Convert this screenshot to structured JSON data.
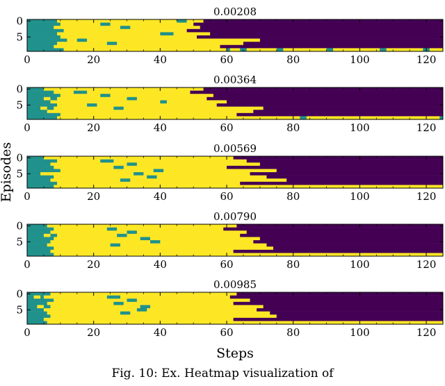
{
  "chart_data": {
    "type": "heatmap",
    "xlabel": "Steps",
    "ylabel": "Episodes",
    "xlim": [
      0,
      125
    ],
    "x_ticks": [
      0,
      20,
      40,
      60,
      80,
      100,
      120
    ],
    "y_ticks": [
      0,
      5
    ],
    "episodes": 10,
    "steps": 125,
    "colors": {
      "teal": "#21918c",
      "yellow": "#fde725",
      "purple": "#440154"
    },
    "panels": [
      {
        "title": "0.00208",
        "teal_end": [
          9,
          10,
          8,
          11,
          9,
          10,
          12,
          9,
          8,
          11
        ],
        "yellow_end": [
          53,
          50,
          52,
          48,
          55,
          51,
          70,
          65,
          58,
          125
        ],
        "teal_spots": [
          [
            1,
            22,
            25
          ],
          [
            2,
            28,
            31
          ],
          [
            4,
            40,
            44
          ],
          [
            6,
            15,
            18
          ],
          [
            7,
            24,
            27
          ],
          [
            0,
            45,
            48
          ]
        ],
        "yellow_spots": [
          [
            2,
            11,
            14
          ],
          [
            5,
            13,
            16
          ],
          [
            8,
            18,
            20
          ],
          [
            3,
            14,
            15
          ]
        ],
        "marks": [
          [
            9,
            60,
            61
          ],
          [
            9,
            64,
            66
          ],
          [
            9,
            75,
            77
          ],
          [
            9,
            90,
            92
          ],
          [
            9,
            106,
            108
          ],
          [
            9,
            119,
            121
          ]
        ]
      },
      {
        "title": "0.00364",
        "teal_end": [
          5,
          8,
          10,
          9,
          7,
          9,
          8,
          6,
          10,
          9
        ],
        "yellow_end": [
          53,
          49,
          56,
          54,
          60,
          57,
          71,
          68,
          63,
          125
        ],
        "teal_spots": [
          [
            1,
            14,
            18
          ],
          [
            2,
            22,
            25
          ],
          [
            3,
            30,
            33
          ],
          [
            5,
            18,
            21
          ],
          [
            6,
            26,
            29
          ],
          [
            4,
            40,
            42
          ]
        ],
        "yellow_spots": [
          [
            3,
            5,
            7
          ],
          [
            6,
            4,
            6
          ]
        ],
        "marks": [
          [
            9,
            82,
            84
          ],
          [
            9,
            124,
            125
          ]
        ]
      },
      {
        "title": "0.00569",
        "teal_end": [
          5,
          9,
          7,
          8,
          10,
          6,
          8,
          7,
          9,
          8
        ],
        "yellow_end": [
          62,
          66,
          70,
          60,
          75,
          67,
          72,
          78,
          64,
          125
        ],
        "teal_spots": [
          [
            1,
            22,
            26
          ],
          [
            2,
            30,
            33
          ],
          [
            3,
            26,
            29
          ],
          [
            4,
            38,
            41
          ],
          [
            5,
            32,
            35
          ],
          [
            6,
            36,
            39
          ],
          [
            7,
            28,
            31
          ]
        ],
        "yellow_spots": [
          [
            5,
            4,
            6
          ]
        ],
        "marks": []
      },
      {
        "title": "0.00790",
        "teal_end": [
          6,
          8,
          7,
          9,
          8,
          7,
          6,
          8,
          7,
          8
        ],
        "yellow_end": [
          63,
          59,
          66,
          64,
          70,
          68,
          72,
          74,
          62,
          125
        ],
        "teal_spots": [
          [
            1,
            24,
            27
          ],
          [
            2,
            30,
            33
          ],
          [
            3,
            27,
            30
          ],
          [
            4,
            34,
            37
          ],
          [
            5,
            37,
            40
          ],
          [
            6,
            25,
            28
          ]
        ],
        "yellow_spots": [
          [
            3,
            5,
            7
          ]
        ],
        "marks": []
      },
      {
        "title": "0.00985",
        "teal_end": [
          7,
          5,
          8,
          6,
          7,
          5,
          6,
          7,
          5,
          6
        ],
        "yellow_end": [
          63,
          61,
          67,
          62,
          71,
          69,
          73,
          75,
          62,
          125
        ],
        "teal_spots": [
          [
            1,
            24,
            28
          ],
          [
            2,
            30,
            33
          ],
          [
            3,
            26,
            29
          ],
          [
            4,
            34,
            37
          ],
          [
            5,
            33,
            36
          ],
          [
            6,
            28,
            31
          ]
        ],
        "yellow_spots": [
          [
            1,
            2,
            4
          ],
          [
            4,
            3,
            5
          ]
        ],
        "marks": []
      }
    ]
  },
  "caption": "Fig. 10: Ex. Heatmap visualization of"
}
